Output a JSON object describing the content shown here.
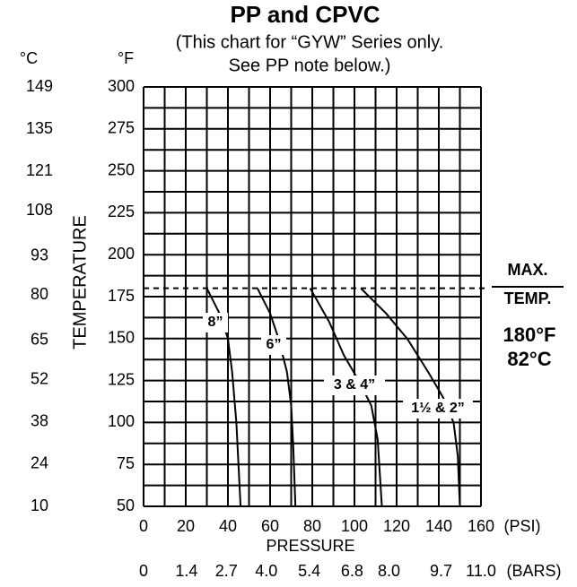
{
  "chart_data": {
    "type": "line",
    "title": "PP and CPVC",
    "subtitle": [
      "(This chart for “GYW” Series only.",
      "See PP note below.)"
    ],
    "y_label": "TEMPERATURE",
    "y_unit": "°F",
    "y2_unit": "°C",
    "x_label": "PRESSURE",
    "x_unit": "(PSI)",
    "x2_unit": "(BARS)",
    "xlim": [
      0,
      160
    ],
    "xticks": [
      0,
      20,
      40,
      60,
      80,
      100,
      120,
      140,
      160
    ],
    "ylim": [
      50,
      300
    ],
    "yticks": [
      50,
      75,
      100,
      125,
      150,
      175,
      200,
      225,
      250,
      275,
      300
    ],
    "y2lim": [
      10,
      149
    ],
    "y2ticks": [
      10,
      24,
      38,
      52,
      65,
      80,
      93,
      108,
      121,
      135,
      149
    ],
    "x2lim": [
      0,
      11
    ],
    "x2ticks": [
      0,
      1.4,
      2.7,
      {
        "value": 4,
        "label": "4.0"
      },
      5.4,
      6.8,
      {
        "value": 8,
        "label": "8.0"
      },
      9.7,
      {
        "value": 11,
        "label": "11.0"
      }
    ],
    "grid": true,
    "max_temp": 180,
    "annotations": [
      "MAX.",
      "TEMP.",
      "180°F",
      "82°C"
    ],
    "series": [
      {
        "name": "8”",
        "color": "#000000",
        "x": [
          30,
          36,
          40,
          42,
          44,
          45,
          46
        ],
        "values": [
          180,
          165,
          150,
          130,
          100,
          75,
          50
        ]
      },
      {
        "name": "6”",
        "color": "#000000",
        "x": [
          54,
          60,
          64,
          68,
          70,
          71,
          72
        ],
        "values": [
          180,
          165,
          150,
          130,
          110,
          85,
          50
        ]
      },
      {
        "name": "3 & 4”",
        "color": "#000000",
        "x": [
          79,
          88,
          95,
          102,
          108,
          111,
          112,
          113
        ],
        "values": [
          180,
          160,
          140,
          125,
          110,
          90,
          70,
          50
        ]
      },
      {
        "name": "1½ & 2”",
        "color": "#000000",
        "x": [
          103,
          115,
          125,
          135,
          142,
          147,
          149,
          150
        ],
        "values": [
          180,
          165,
          150,
          130,
          115,
          100,
          80,
          50
        ]
      }
    ]
  }
}
